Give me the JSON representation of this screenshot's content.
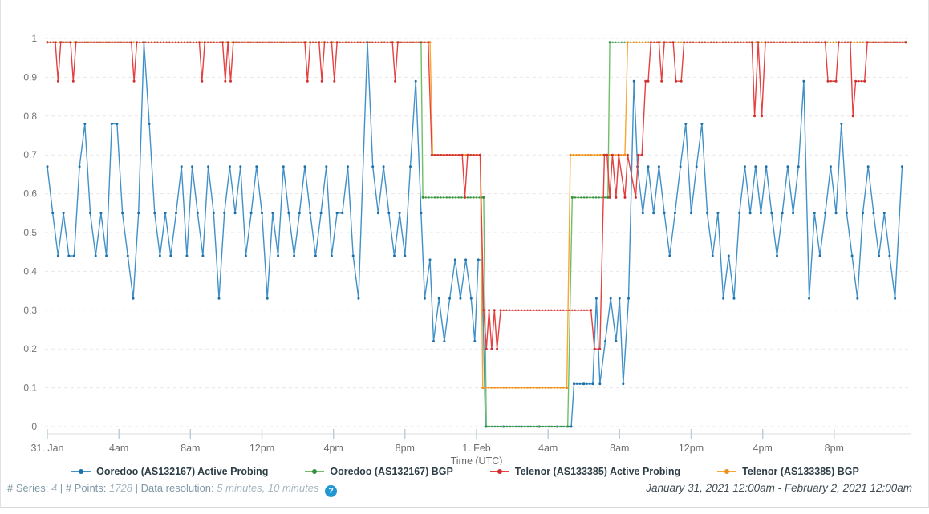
{
  "chart_data": {
    "type": "line",
    "title": "",
    "xlabel": "Time (UTC)",
    "x_unit": "hours since January 31, 2021 12:00am UTC",
    "xlim": [
      0,
      48
    ],
    "ylim": [
      0,
      1
    ],
    "grid": "horizontal-dashed",
    "legend_position": "bottom",
    "y_ticks": [
      {
        "v": 1.0,
        "label": "1"
      },
      {
        "v": 0.9,
        "label": "0.9"
      },
      {
        "v": 0.8,
        "label": "0.8"
      },
      {
        "v": 0.7,
        "label": "0.7"
      },
      {
        "v": 0.6,
        "label": "0.6"
      },
      {
        "v": 0.5,
        "label": "0.5"
      },
      {
        "v": 0.4,
        "label": "0.4"
      },
      {
        "v": 0.3,
        "label": "0.3"
      },
      {
        "v": 0.2,
        "label": "0.2"
      },
      {
        "v": 0.1,
        "label": "0.1"
      },
      {
        "v": 0.0,
        "label": "0"
      }
    ],
    "x_ticks": [
      {
        "hour": 0,
        "label": "31. Jan"
      },
      {
        "hour": 4,
        "label": "4am"
      },
      {
        "hour": 8,
        "label": "8am"
      },
      {
        "hour": 12,
        "label": "12pm"
      },
      {
        "hour": 16,
        "label": "4pm"
      },
      {
        "hour": 20,
        "label": "8pm"
      },
      {
        "hour": 24,
        "label": "1. Feb"
      },
      {
        "hour": 28,
        "label": "4am"
      },
      {
        "hour": 32,
        "label": "8am"
      },
      {
        "hour": 36,
        "label": "12pm"
      },
      {
        "hour": 40,
        "label": "4pm"
      },
      {
        "hour": 44,
        "label": "8pm"
      }
    ],
    "series": [
      {
        "name": "Ooredoo (AS132167) Active Probing",
        "color": "#4191c9",
        "marker_color": "#1d6fa8",
        "points": [
          [
            0,
            0.67
          ],
          [
            0.3,
            0.55
          ],
          [
            0.6,
            0.44
          ],
          [
            0.9,
            0.55
          ],
          [
            1.2,
            0.44
          ],
          [
            1.5,
            0.44
          ],
          [
            1.8,
            0.67
          ],
          [
            2.1,
            0.78
          ],
          [
            2.4,
            0.55
          ],
          [
            2.7,
            0.44
          ],
          [
            3.0,
            0.55
          ],
          [
            3.3,
            0.44
          ],
          [
            3.6,
            0.78
          ],
          [
            3.9,
            0.78
          ],
          [
            4.2,
            0.55
          ],
          [
            4.5,
            0.44
          ],
          [
            4.8,
            0.33
          ],
          [
            5.1,
            0.55
          ],
          [
            5.4,
            0.99
          ],
          [
            5.7,
            0.78
          ],
          [
            6.0,
            0.55
          ],
          [
            6.3,
            0.44
          ],
          [
            6.6,
            0.55
          ],
          [
            6.9,
            0.44
          ],
          [
            7.2,
            0.55
          ],
          [
            7.5,
            0.67
          ],
          [
            7.8,
            0.44
          ],
          [
            8.1,
            0.67
          ],
          [
            8.4,
            0.55
          ],
          [
            8.7,
            0.44
          ],
          [
            9.0,
            0.67
          ],
          [
            9.3,
            0.55
          ],
          [
            9.6,
            0.33
          ],
          [
            9.9,
            0.55
          ],
          [
            10.2,
            0.67
          ],
          [
            10.5,
            0.55
          ],
          [
            10.8,
            0.67
          ],
          [
            11.1,
            0.44
          ],
          [
            11.4,
            0.55
          ],
          [
            11.7,
            0.67
          ],
          [
            12.0,
            0.55
          ],
          [
            12.3,
            0.33
          ],
          [
            12.6,
            0.55
          ],
          [
            12.9,
            0.44
          ],
          [
            13.2,
            0.67
          ],
          [
            13.5,
            0.55
          ],
          [
            13.8,
            0.44
          ],
          [
            14.1,
            0.55
          ],
          [
            14.4,
            0.67
          ],
          [
            14.7,
            0.55
          ],
          [
            15.0,
            0.44
          ],
          [
            15.3,
            0.55
          ],
          [
            15.6,
            0.67
          ],
          [
            15.9,
            0.44
          ],
          [
            16.2,
            0.55
          ],
          [
            16.5,
            0.55
          ],
          [
            16.8,
            0.67
          ],
          [
            17.1,
            0.44
          ],
          [
            17.4,
            0.33
          ],
          [
            17.9,
            0.99
          ],
          [
            18.2,
            0.67
          ],
          [
            18.5,
            0.55
          ],
          [
            18.8,
            0.67
          ],
          [
            19.1,
            0.55
          ],
          [
            19.4,
            0.44
          ],
          [
            19.7,
            0.55
          ],
          [
            20.0,
            0.44
          ],
          [
            20.3,
            0.67
          ],
          [
            20.6,
            0.89
          ],
          [
            20.9,
            0.55
          ],
          [
            21.1,
            0.33
          ],
          [
            21.4,
            0.43
          ],
          [
            21.6,
            0.22
          ],
          [
            21.9,
            0.33
          ],
          [
            22.2,
            0.22
          ],
          [
            22.5,
            0.33
          ],
          [
            22.8,
            0.43
          ],
          [
            23.1,
            0.33
          ],
          [
            23.4,
            0.43
          ],
          [
            23.7,
            0.33
          ],
          [
            23.9,
            0.22
          ],
          [
            24.1,
            0.43
          ],
          [
            24.3,
            0.43
          ],
          [
            24.5,
            0.0
          ],
          [
            25.5,
            0.0
          ],
          [
            26.5,
            0.0
          ],
          [
            27.5,
            0.0
          ],
          [
            28.5,
            0.0
          ],
          [
            29.3,
            0.0
          ],
          [
            29.45,
            0.11
          ],
          [
            30.0,
            0.11
          ],
          [
            30.5,
            0.11
          ],
          [
            30.7,
            0.33
          ],
          [
            30.9,
            0.11
          ],
          [
            31.2,
            0.22
          ],
          [
            31.5,
            0.33
          ],
          [
            31.8,
            0.22
          ],
          [
            32.0,
            0.33
          ],
          [
            32.2,
            0.11
          ],
          [
            32.5,
            0.33
          ],
          [
            32.8,
            0.89
          ],
          [
            33.0,
            0.67
          ],
          [
            33.3,
            0.55
          ],
          [
            33.6,
            0.67
          ],
          [
            33.9,
            0.55
          ],
          [
            34.2,
            0.67
          ],
          [
            34.5,
            0.55
          ],
          [
            34.8,
            0.44
          ],
          [
            35.1,
            0.55
          ],
          [
            35.4,
            0.67
          ],
          [
            35.7,
            0.78
          ],
          [
            36.0,
            0.55
          ],
          [
            36.3,
            0.67
          ],
          [
            36.6,
            0.78
          ],
          [
            36.9,
            0.55
          ],
          [
            37.2,
            0.44
          ],
          [
            37.5,
            0.55
          ],
          [
            37.8,
            0.33
          ],
          [
            38.1,
            0.44
          ],
          [
            38.4,
            0.33
          ],
          [
            38.7,
            0.55
          ],
          [
            39.0,
            0.67
          ],
          [
            39.3,
            0.55
          ],
          [
            39.6,
            0.67
          ],
          [
            39.9,
            0.55
          ],
          [
            40.2,
            0.67
          ],
          [
            40.5,
            0.55
          ],
          [
            40.8,
            0.44
          ],
          [
            41.1,
            0.55
          ],
          [
            41.4,
            0.67
          ],
          [
            41.7,
            0.55
          ],
          [
            42.0,
            0.67
          ],
          [
            42.3,
            0.89
          ],
          [
            42.6,
            0.33
          ],
          [
            42.9,
            0.55
          ],
          [
            43.2,
            0.44
          ],
          [
            43.5,
            0.55
          ],
          [
            43.8,
            0.67
          ],
          [
            44.1,
            0.55
          ],
          [
            44.4,
            0.78
          ],
          [
            44.7,
            0.55
          ],
          [
            45.0,
            0.44
          ],
          [
            45.3,
            0.33
          ],
          [
            45.6,
            0.55
          ],
          [
            45.9,
            0.67
          ],
          [
            46.2,
            0.55
          ],
          [
            46.5,
            0.44
          ],
          [
            46.8,
            0.55
          ],
          [
            47.1,
            0.44
          ],
          [
            47.4,
            0.33
          ],
          [
            47.8,
            0.67
          ]
        ]
      },
      {
        "name": "Ooredoo (AS132167) BGP",
        "color": "#6fbf68",
        "marker_color": "#358f3f",
        "points": [
          [
            0,
            0.99
          ],
          [
            20.9,
            0.99
          ],
          [
            21.0,
            0.59
          ],
          [
            24.4,
            0.59
          ],
          [
            24.55,
            0.0
          ],
          [
            29.1,
            0.0
          ],
          [
            29.35,
            0.59
          ],
          [
            31.35,
            0.59
          ],
          [
            31.45,
            0.99
          ],
          [
            48,
            0.99
          ]
        ]
      },
      {
        "name": "Telenor (AS133385) BGP",
        "color": "#f7a733",
        "marker_color": "#ef8d1a",
        "points": [
          [
            0,
            0.99
          ],
          [
            21.4,
            0.99
          ],
          [
            21.55,
            0.7
          ],
          [
            24.2,
            0.7
          ],
          [
            24.35,
            0.1
          ],
          [
            29.05,
            0.1
          ],
          [
            29.25,
            0.7
          ],
          [
            32.3,
            0.7
          ],
          [
            32.45,
            0.99
          ],
          [
            48,
            0.99
          ]
        ]
      },
      {
        "name": "Telenor (AS133385) Active Probing",
        "color": "#e54141",
        "marker_color": "#ce2f2f",
        "points": [
          [
            0,
            0.99
          ],
          [
            0.45,
            0.99
          ],
          [
            0.6,
            0.89
          ],
          [
            0.75,
            0.99
          ],
          [
            1.3,
            0.99
          ],
          [
            1.45,
            0.89
          ],
          [
            1.6,
            0.99
          ],
          [
            4.7,
            0.99
          ],
          [
            4.85,
            0.89
          ],
          [
            5.0,
            0.99
          ],
          [
            8.5,
            0.99
          ],
          [
            8.65,
            0.89
          ],
          [
            8.8,
            0.99
          ],
          [
            9.8,
            0.99
          ],
          [
            9.95,
            0.89
          ],
          [
            10.1,
            0.99
          ],
          [
            10.25,
            0.89
          ],
          [
            10.4,
            0.99
          ],
          [
            14.4,
            0.99
          ],
          [
            14.55,
            0.89
          ],
          [
            14.7,
            0.99
          ],
          [
            15.2,
            0.99
          ],
          [
            15.35,
            0.89
          ],
          [
            15.5,
            0.99
          ],
          [
            15.9,
            0.99
          ],
          [
            16.05,
            0.89
          ],
          [
            16.2,
            0.99
          ],
          [
            19.3,
            0.99
          ],
          [
            19.45,
            0.89
          ],
          [
            19.6,
            0.99
          ],
          [
            21.3,
            0.99
          ],
          [
            21.5,
            0.7
          ],
          [
            23.2,
            0.7
          ],
          [
            23.35,
            0.59
          ],
          [
            23.5,
            0.7
          ],
          [
            24.2,
            0.7
          ],
          [
            24.4,
            0.3
          ],
          [
            24.55,
            0.2
          ],
          [
            24.7,
            0.3
          ],
          [
            24.85,
            0.2
          ],
          [
            25.0,
            0.3
          ],
          [
            25.15,
            0.2
          ],
          [
            25.35,
            0.3
          ],
          [
            30.4,
            0.3
          ],
          [
            30.6,
            0.2
          ],
          [
            30.9,
            0.2
          ],
          [
            31.15,
            0.7
          ],
          [
            31.3,
            0.7
          ],
          [
            31.45,
            0.59
          ],
          [
            31.6,
            0.7
          ],
          [
            31.8,
            0.59
          ],
          [
            31.95,
            0.7
          ],
          [
            32.3,
            0.59
          ],
          [
            32.45,
            0.7
          ],
          [
            32.9,
            0.59
          ],
          [
            33.05,
            0.7
          ],
          [
            33.25,
            0.7
          ],
          [
            33.45,
            0.89
          ],
          [
            33.6,
            0.89
          ],
          [
            33.75,
            0.99
          ],
          [
            34.2,
            0.99
          ],
          [
            34.35,
            0.89
          ],
          [
            34.5,
            0.99
          ],
          [
            35.0,
            0.99
          ],
          [
            35.15,
            0.89
          ],
          [
            35.45,
            0.89
          ],
          [
            35.6,
            0.99
          ],
          [
            39.4,
            0.99
          ],
          [
            39.55,
            0.8
          ],
          [
            39.75,
            0.99
          ],
          [
            39.95,
            0.8
          ],
          [
            40.15,
            0.99
          ],
          [
            43.5,
            0.99
          ],
          [
            43.65,
            0.89
          ],
          [
            44.1,
            0.89
          ],
          [
            44.25,
            0.99
          ],
          [
            44.9,
            0.99
          ],
          [
            45.05,
            0.8
          ],
          [
            45.2,
            0.89
          ],
          [
            45.7,
            0.89
          ],
          [
            45.85,
            0.99
          ],
          [
            48,
            0.99
          ]
        ]
      }
    ],
    "legend_order": [
      "Ooredoo (AS132167) Active Probing",
      "Ooredoo (AS132167) BGP",
      "Telenor (AS133385) Active Probing",
      "Telenor (AS133385) BGP"
    ]
  },
  "footer": {
    "series_label": "# Series:",
    "series_value": "4",
    "sep": "|",
    "points_label": "# Points:",
    "points_value": "1728",
    "resolution_label": "Data resolution:",
    "resolution_value": "5 minutes, 10 minutes",
    "help_icon": "?"
  },
  "date_range": "January 31, 2021 12:00am - February 2, 2021 12:00am"
}
